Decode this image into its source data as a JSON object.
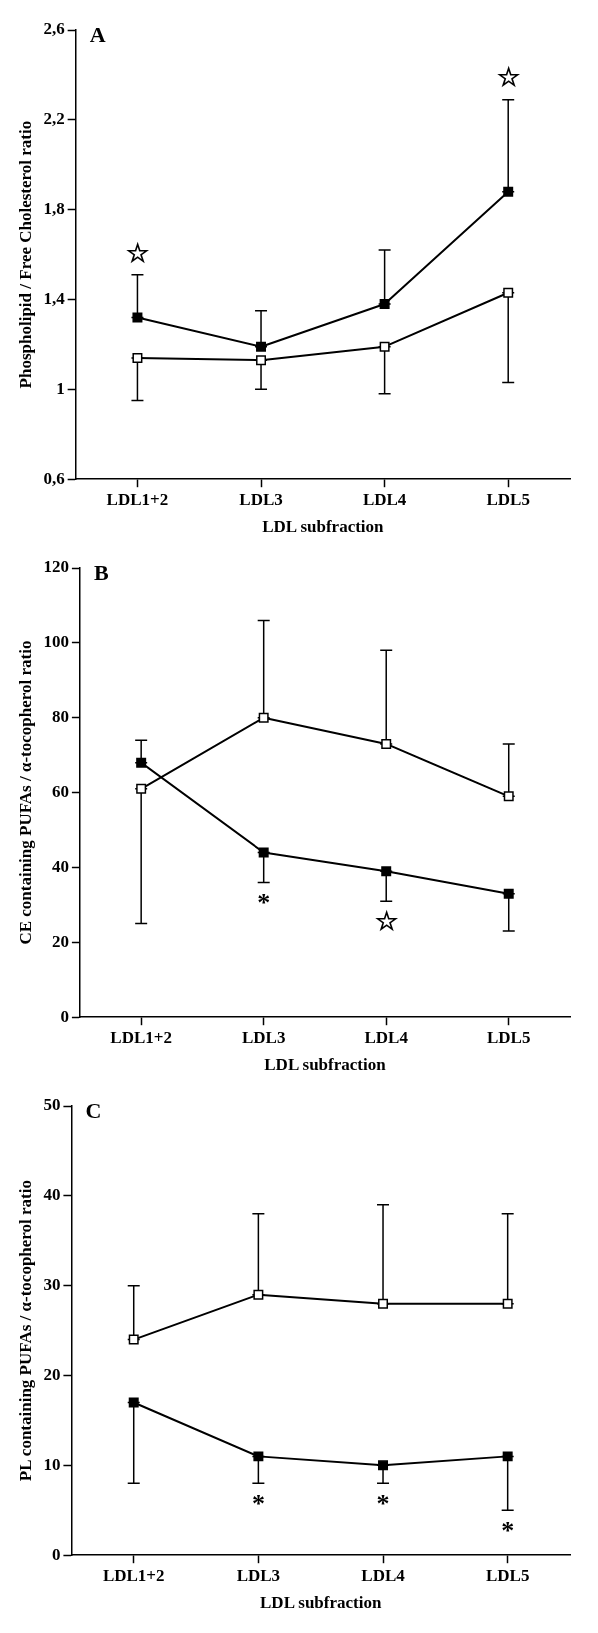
{
  "chart_data": [
    {
      "type": "line",
      "title": "A",
      "xlabel": "LDL subfraction",
      "ylabel": "Phospholipid / Free Cholesterol ratio",
      "categories": [
        "LDL1+2",
        "LDL3",
        "LDL4",
        "LDL5"
      ],
      "ylim": [
        0.6,
        2.6
      ],
      "yticks": [
        {
          "value": 0.6,
          "label": "0,6"
        },
        1,
        {
          "value": 1.4,
          "label": "1,4"
        },
        {
          "value": 1.8,
          "label": "1,8"
        },
        {
          "value": 2.2,
          "label": "2,2"
        },
        {
          "value": 2.6,
          "label": "2,6"
        }
      ],
      "marker": "square",
      "grid": false,
      "legend": false,
      "series": [
        {
          "color": "#000000",
          "values": [
            1.32,
            1.19,
            1.38,
            1.88
          ],
          "errors": [
            [
              1.32,
              1.51
            ],
            [
              1.19,
              1.35
            ],
            [
              1.38,
              1.62
            ],
            [
              1.88,
              2.29
            ]
          ]
        },
        {
          "color": "#ffffff",
          "values": [
            1.14,
            1.13,
            1.19,
            1.43
          ],
          "errors": [
            [
              0.95,
              1.14
            ],
            [
              1.0,
              1.13
            ],
            [
              0.98,
              1.19
            ],
            [
              1.03,
              1.43
            ]
          ]
        }
      ],
      "annotations": [
        {
          "text": "☆",
          "x": "LDL1+2",
          "y": 1.51
        },
        {
          "text": "☆",
          "x": "LDL5",
          "y": 2.29
        }
      ]
    },
    {
      "type": "line",
      "title": "B",
      "xlabel": "LDL subfraction",
      "ylabel": "CE containing PUFAs / α-tocopherol ratio",
      "categories": [
        "LDL1+2",
        "LDL3",
        "LDL4",
        "LDL5"
      ],
      "ylim": [
        0,
        120
      ],
      "yticks": [
        0,
        20,
        40,
        60,
        80,
        100,
        120
      ],
      "marker": "square",
      "grid": false,
      "legend": false,
      "series": [
        {
          "color": "#000000",
          "values": [
            68,
            44,
            39,
            33
          ],
          "errors": [
            [
              68,
              74
            ],
            [
              36,
              44
            ],
            [
              31,
              39
            ],
            [
              23,
              33
            ]
          ]
        },
        {
          "color": "#ffffff",
          "values": [
            61,
            80,
            73,
            59
          ],
          "errors": [
            [
              25,
              61
            ],
            [
              80,
              106
            ],
            [
              73,
              98
            ],
            [
              59,
              73
            ]
          ]
        }
      ],
      "annotations": [
        {
          "text": "*",
          "x": "LDL3",
          "y": 36
        },
        {
          "text": "☆",
          "x": "LDL4",
          "y": 31
        }
      ]
    },
    {
      "type": "line",
      "title": "C",
      "xlabel": "LDL subfraction",
      "ylabel": "PL containing PUFAs / α-tocopherol ratio",
      "categories": [
        "LDL1+2",
        "LDL3",
        "LDL4",
        "LDL5"
      ],
      "ylim": [
        0,
        50
      ],
      "yticks": [
        0,
        10,
        20,
        30,
        40,
        50
      ],
      "marker": "square",
      "grid": false,
      "legend": false,
      "series": [
        {
          "color": "#ffffff",
          "values": [
            24,
            29,
            28,
            28
          ],
          "errors": [
            [
              24,
              30
            ],
            [
              29,
              38
            ],
            [
              28,
              39
            ],
            [
              28,
              38
            ]
          ]
        },
        {
          "color": "#000000",
          "values": [
            17,
            11,
            10,
            11
          ],
          "errors": [
            [
              8,
              17
            ],
            [
              8,
              11
            ],
            [
              8,
              10
            ],
            [
              5,
              11
            ]
          ]
        }
      ],
      "annotations": [
        {
          "text": "*",
          "x": "LDL3",
          "y": 8
        },
        {
          "text": "*",
          "x": "LDL4",
          "y": 8
        },
        {
          "text": "*",
          "x": "LDL5",
          "y": 5
        }
      ]
    }
  ]
}
